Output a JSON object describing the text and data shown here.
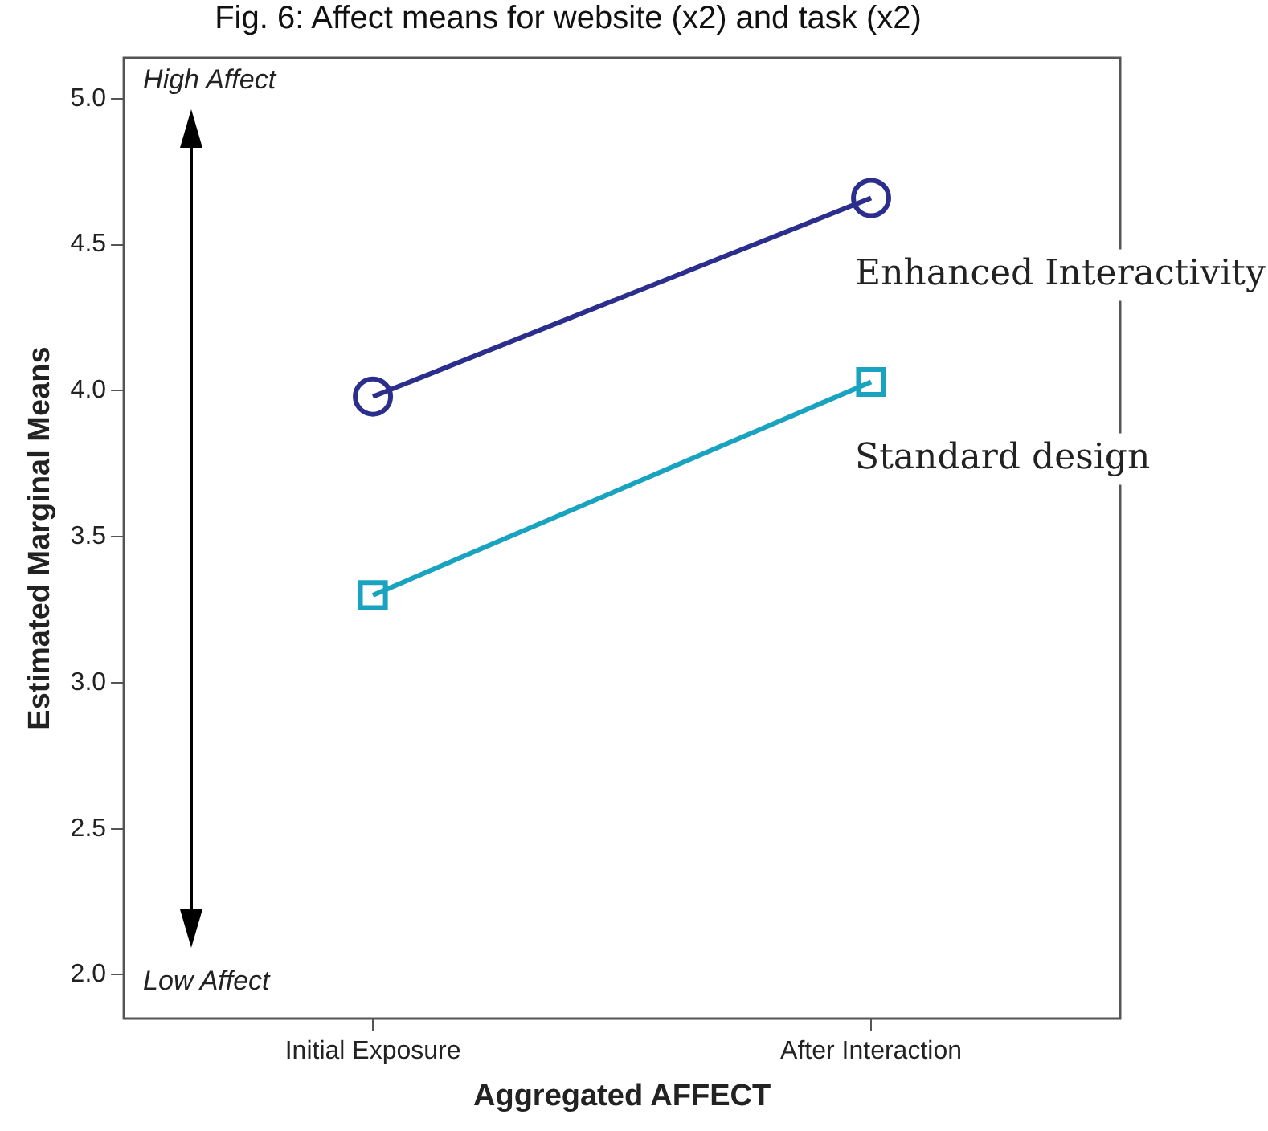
{
  "chart_data": {
    "type": "line",
    "title": "Fig. 6: Affect means for website (x2) and task (x2)",
    "xlabel": "Aggregated AFFECT",
    "ylabel": "Estimated Marginal Means",
    "categories": [
      "Initial Exposure",
      "After Interaction"
    ],
    "series": [
      {
        "name": "Enhanced Interactivity",
        "color": "#2b2e8c",
        "marker": "circle",
        "values": [
          3.98,
          4.66
        ]
      },
      {
        "name": "Standard design",
        "color": "#1aa3c0",
        "marker": "square",
        "values": [
          3.3,
          4.03
        ]
      }
    ],
    "ylim": [
      1.85,
      5.14
    ],
    "yticks": [
      {
        "value": 2,
        "label": "2.0"
      },
      {
        "value": 2.5,
        "label": "2.5"
      },
      {
        "value": 3,
        "label": "3.0"
      },
      {
        "value": 3.5,
        "label": "3.5"
      },
      {
        "value": 4,
        "label": "4.0"
      },
      {
        "value": 4.5,
        "label": "4.5"
      },
      {
        "value": 5,
        "label": "5.0"
      }
    ],
    "annotations": [
      "High Affect",
      "Low Affect"
    ],
    "grid": false,
    "legend": false,
    "line_style": "solid"
  }
}
